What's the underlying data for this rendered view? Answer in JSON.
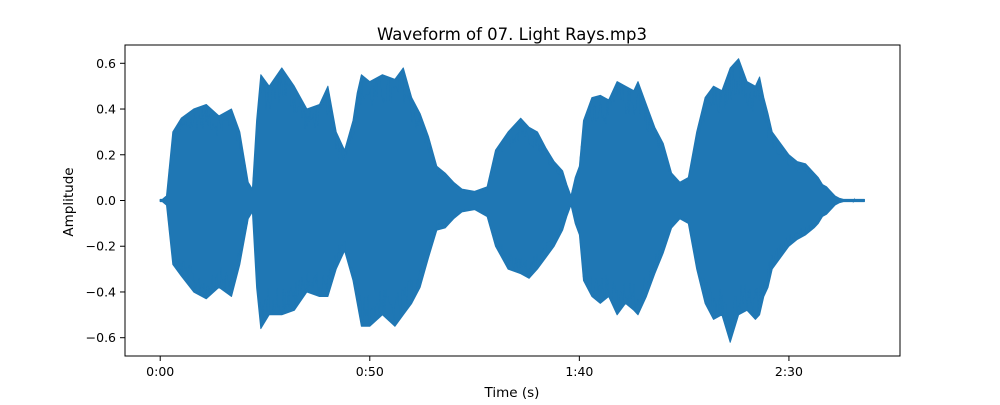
{
  "chart_data": {
    "type": "line",
    "title": "Waveform of 07. Light Rays.mp3",
    "xlabel": "Time (s)",
    "ylabel": "Amplitude",
    "xlim": [
      -8.4,
      176.5
    ],
    "ylim": [
      -0.68,
      0.68
    ],
    "x_ticks": [
      {
        "value": 0,
        "label": "0:00"
      },
      {
        "value": 50,
        "label": "0:50"
      },
      {
        "value": 100,
        "label": "1:40"
      },
      {
        "value": 150,
        "label": "2:30"
      }
    ],
    "y_ticks": [
      {
        "value": 0.6,
        "label": "0.6"
      },
      {
        "value": 0.4,
        "label": "0.4"
      },
      {
        "value": 0.2,
        "label": "0.2"
      },
      {
        "value": 0.0,
        "label": "0.0"
      },
      {
        "value": -0.2,
        "label": "−0.2"
      },
      {
        "value": -0.4,
        "label": "−0.4"
      },
      {
        "value": -0.6,
        "label": "−0.6"
      }
    ],
    "grid": false,
    "legend": "none",
    "series": [
      {
        "color": "#1f77b4",
        "x": [
          0,
          0.5,
          1.5,
          3,
          5,
          8,
          11,
          14,
          17,
          19,
          21,
          22,
          23,
          24,
          26,
          29,
          32,
          35,
          38,
          40,
          42,
          44,
          46,
          47,
          48,
          50,
          53,
          56,
          58,
          60,
          62,
          64,
          66,
          68,
          70,
          72,
          75,
          78,
          80,
          83,
          86,
          88,
          90,
          92,
          94,
          96,
          97,
          98,
          99,
          100,
          101,
          103,
          105,
          107,
          109,
          111,
          113,
          114,
          116,
          118,
          120,
          122,
          124,
          126,
          128,
          130,
          132,
          134,
          136,
          138,
          140,
          142,
          143,
          144,
          145,
          146,
          148,
          150,
          152,
          154,
          156,
          157,
          158,
          159,
          160,
          161,
          162,
          163,
          164,
          165,
          166,
          167,
          168
        ],
        "upper": [
          0.005,
          0.005,
          0.02,
          0.3,
          0.36,
          0.4,
          0.42,
          0.37,
          0.4,
          0.3,
          0.08,
          0.05,
          0.35,
          0.55,
          0.5,
          0.58,
          0.5,
          0.4,
          0.42,
          0.5,
          0.3,
          0.22,
          0.35,
          0.47,
          0.55,
          0.52,
          0.55,
          0.53,
          0.58,
          0.45,
          0.38,
          0.28,
          0.15,
          0.12,
          0.08,
          0.05,
          0.04,
          0.06,
          0.22,
          0.3,
          0.36,
          0.32,
          0.3,
          0.23,
          0.17,
          0.13,
          0.07,
          0.02,
          0.1,
          0.15,
          0.35,
          0.45,
          0.46,
          0.44,
          0.52,
          0.5,
          0.48,
          0.52,
          0.42,
          0.32,
          0.25,
          0.12,
          0.08,
          0.1,
          0.3,
          0.45,
          0.5,
          0.48,
          0.58,
          0.62,
          0.52,
          0.5,
          0.54,
          0.45,
          0.38,
          0.3,
          0.25,
          0.2,
          0.17,
          0.16,
          0.12,
          0.1,
          0.07,
          0.06,
          0.04,
          0.02,
          0.01,
          0.005,
          0.005,
          0.005,
          0.005,
          0.005,
          0.005
        ],
        "lower": [
          -0.005,
          -0.005,
          -0.02,
          -0.28,
          -0.33,
          -0.4,
          -0.43,
          -0.38,
          -0.42,
          -0.28,
          -0.08,
          -0.05,
          -0.38,
          -0.56,
          -0.5,
          -0.5,
          -0.48,
          -0.4,
          -0.42,
          -0.42,
          -0.3,
          -0.22,
          -0.35,
          -0.45,
          -0.55,
          -0.55,
          -0.5,
          -0.55,
          -0.5,
          -0.45,
          -0.38,
          -0.25,
          -0.13,
          -0.12,
          -0.08,
          -0.05,
          -0.04,
          -0.07,
          -0.2,
          -0.3,
          -0.32,
          -0.34,
          -0.3,
          -0.25,
          -0.2,
          -0.13,
          -0.07,
          -0.02,
          -0.1,
          -0.15,
          -0.35,
          -0.42,
          -0.45,
          -0.42,
          -0.5,
          -0.45,
          -0.48,
          -0.5,
          -0.42,
          -0.32,
          -0.23,
          -0.12,
          -0.08,
          -0.1,
          -0.3,
          -0.45,
          -0.52,
          -0.5,
          -0.62,
          -0.5,
          -0.48,
          -0.52,
          -0.5,
          -0.42,
          -0.38,
          -0.3,
          -0.25,
          -0.2,
          -0.17,
          -0.15,
          -0.12,
          -0.1,
          -0.07,
          -0.06,
          -0.04,
          -0.02,
          -0.01,
          -0.005,
          -0.005,
          -0.005,
          -0.005,
          -0.005,
          -0.005
        ]
      }
    ]
  }
}
